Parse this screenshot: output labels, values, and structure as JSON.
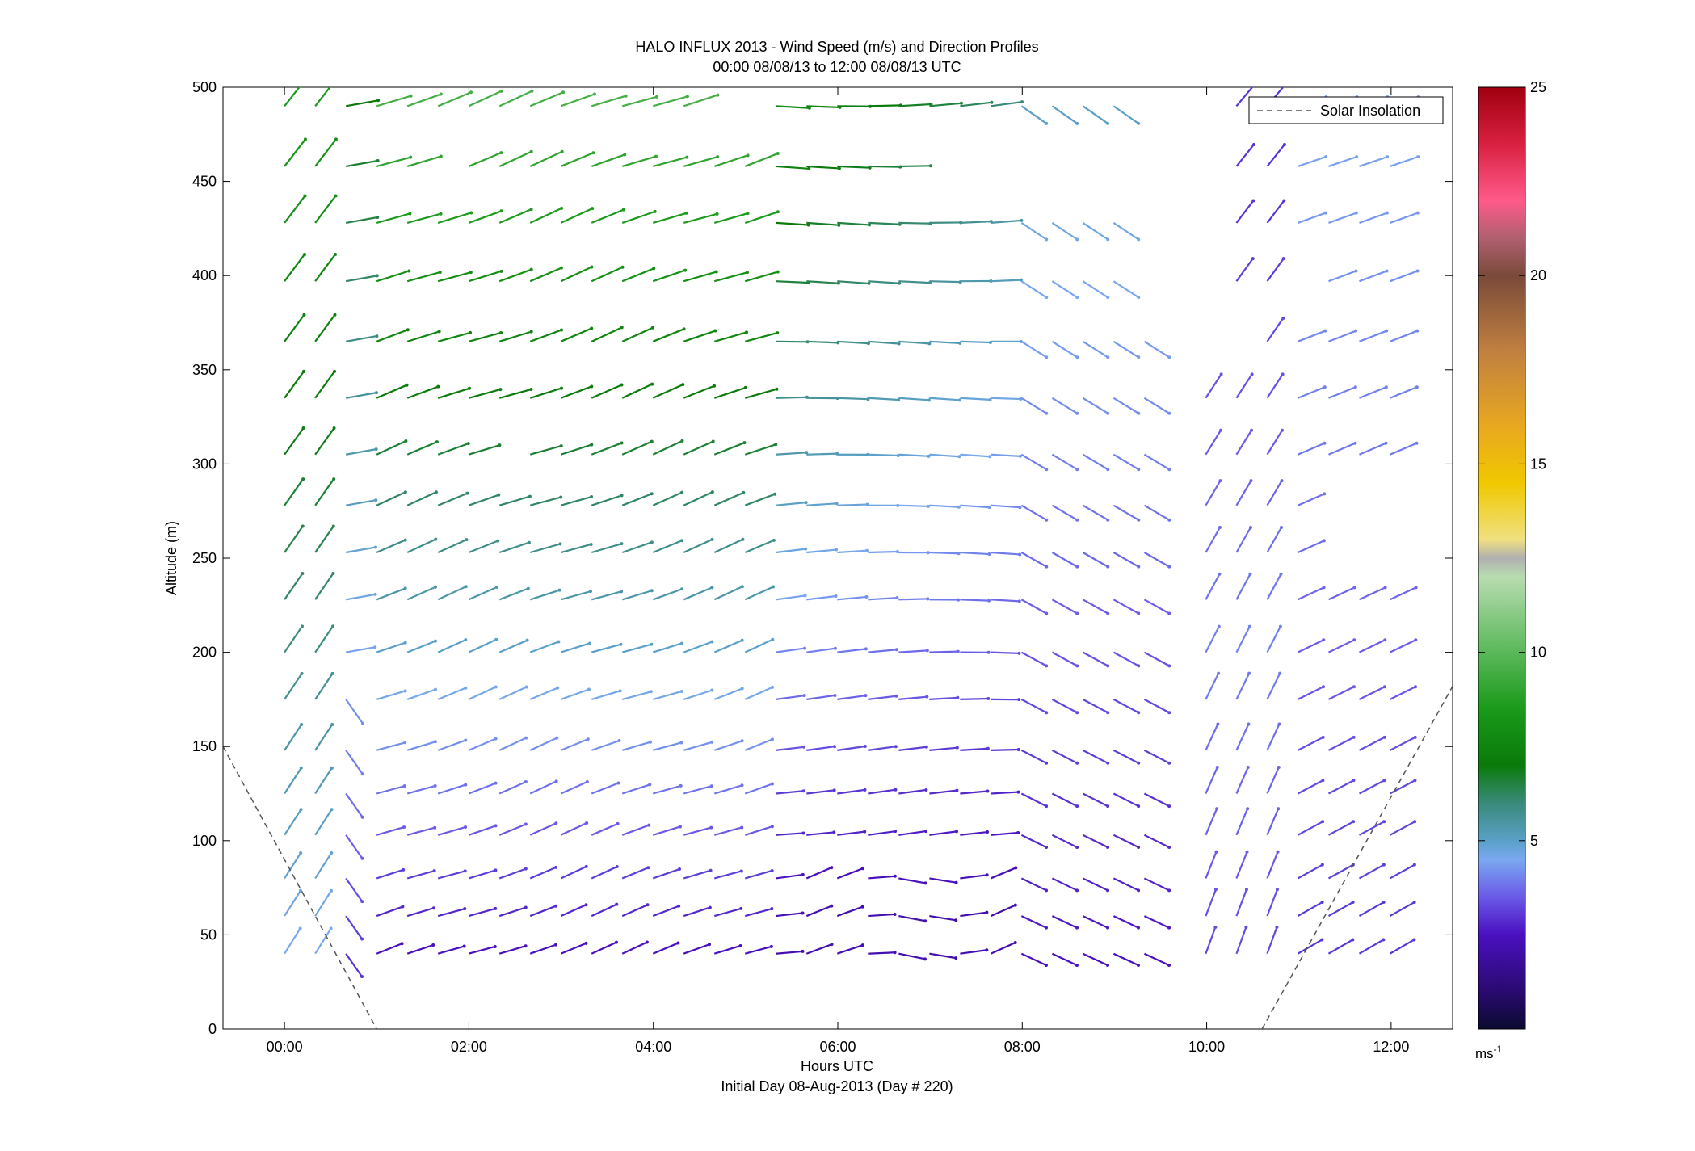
{
  "chart_data": {
    "type": "wind-barb-profile",
    "title_line1": "HALO INFLUX 2013 - Wind Speed (m/s) and Direction Profiles",
    "title_line2": "00:00 08/08/13 to 12:00 08/08/13  UTC",
    "xlabel": "Hours UTC",
    "xlabel_sub": "Initial Day 08-Aug-2013 (Day # 220)",
    "ylabel": "Altitude (m)",
    "xlim_hours": [
      -0.667,
      12.667
    ],
    "ylim": [
      0,
      500
    ],
    "x_ticks": [
      {
        "value": 0,
        "label": "00:00"
      },
      {
        "value": 2,
        "label": "02:00"
      },
      {
        "value": 4,
        "label": "04:00"
      },
      {
        "value": 6,
        "label": "06:00"
      },
      {
        "value": 8,
        "label": "08:00"
      },
      {
        "value": 10,
        "label": "10:00"
      },
      {
        "value": 12,
        "label": "12:00"
      }
    ],
    "y_ticks": [
      0,
      50,
      100,
      150,
      200,
      250,
      300,
      350,
      400,
      450,
      500
    ],
    "legend": {
      "position": "top-right",
      "entries": [
        {
          "label": "Solar Insolation",
          "style": "dashed",
          "color": "#555555"
        }
      ]
    },
    "solar_insolation": [
      [
        {
          "x": -0.667,
          "y": 150
        },
        {
          "x": 1.0,
          "y": 0
        }
      ],
      [
        {
          "x": 10.6,
          "y": 0
        },
        {
          "x": 12.667,
          "y": 182
        }
      ]
    ],
    "colorbar": {
      "min": 0,
      "max": 25,
      "ticks": [
        "5",
        "10",
        "15",
        "20",
        "25"
      ],
      "unit_label": "ms",
      "unit_exponent": "-1",
      "stops": [
        {
          "v": 0,
          "c": "#0a0a30"
        },
        {
          "v": 1,
          "c": "#2a0a70"
        },
        {
          "v": 2.5,
          "c": "#4a10c0"
        },
        {
          "v": 3.5,
          "c": "#6a5ae8"
        },
        {
          "v": 4.5,
          "c": "#7aa8f0"
        },
        {
          "v": 5,
          "c": "#5aa0c8"
        },
        {
          "v": 6,
          "c": "#3a8a7a"
        },
        {
          "v": 7,
          "c": "#0a7a0a"
        },
        {
          "v": 8.5,
          "c": "#1a9a1a"
        },
        {
          "v": 10,
          "c": "#5ab85a"
        },
        {
          "v": 12,
          "c": "#b8dcb0"
        },
        {
          "v": 12.5,
          "c": "#b0b0b0"
        },
        {
          "v": 13,
          "c": "#f0e080"
        },
        {
          "v": 14.5,
          "c": "#f0c800"
        },
        {
          "v": 16,
          "c": "#e8a820"
        },
        {
          "v": 18,
          "c": "#c08040"
        },
        {
          "v": 20,
          "c": "#7a4a3a"
        },
        {
          "v": 21,
          "c": "#b06070"
        },
        {
          "v": 22,
          "c": "#ff5a8a"
        },
        {
          "v": 23.5,
          "c": "#d82040"
        },
        {
          "v": 25,
          "c": "#a00010"
        }
      ]
    },
    "wind_grid": {
      "levels_m": [
        40,
        60,
        80,
        103,
        125,
        148,
        175,
        200,
        228,
        253,
        278,
        305,
        335,
        365,
        397,
        428,
        458,
        490
      ],
      "time_start_hours": 0.0,
      "time_step_hours": 0.333,
      "steps": 37,
      "gaps": [
        {
          "t": [
            9.55,
            9.75
          ],
          "z": [
            0,
            500
          ]
        },
        {
          "t": [
            9.1,
            10.2
          ],
          "z": [
            380,
            500
          ]
        },
        {
          "t": [
            9.5,
            9.75
          ],
          "z": [
            330,
            380
          ]
        },
        {
          "t": [
            11.3,
            12.5
          ],
          "z": [
            240,
            300
          ]
        },
        {
          "t": [
            4.35,
            5.0
          ],
          "z": [
            480,
            500
          ]
        },
        {
          "t": [
            1.35,
            1.8
          ],
          "z": [
            440,
            470
          ]
        },
        {
          "t": [
            6.9,
            7.4
          ],
          "z": [
            440,
            470
          ]
        },
        {
          "t": [
            7.6,
            9.5
          ],
          "z": [
            440,
            470
          ]
        },
        {
          "t": [
            9.6,
            10.2
          ],
          "z": [
            400,
            500
          ]
        },
        {
          "t": [
            2.2,
            2.5
          ],
          "z": [
            290,
            320
          ]
        },
        {
          "t": [
            1.0,
            1.2
          ],
          "z": [
            300,
            320
          ]
        },
        {
          "t": [
            9.9,
            10.5
          ],
          "z": [
            360,
            380
          ]
        },
        {
          "t": [
            10.9,
            11.1
          ],
          "z": [
            390,
            410
          ]
        }
      ]
    }
  }
}
